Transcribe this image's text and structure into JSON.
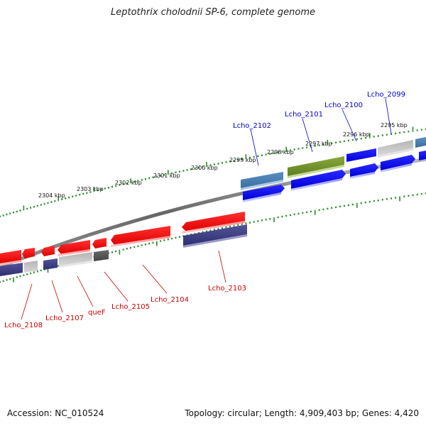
{
  "title": "Leptothrix cholodnii SP-6, complete genome",
  "accession": "Accession: NC_010524",
  "summary": "Topology: circular; Length: 4,909,403 bp; Genes: 4,420",
  "colors": {
    "forward_gene": "#0000ee",
    "reverse_gene": "#ee0000",
    "forward_label": "#0000cc",
    "reverse_label": "#cc0000",
    "tick": "#2a8a2a",
    "backbone": "#888888"
  },
  "scale_labels": [
    "2304 kbp",
    "2303 kbp",
    "2302 kbp",
    "2301 kbp",
    "2300 kbp",
    "2299 kbp",
    "2298 kbp",
    "2297 kbp",
    "2296 kbp",
    "2295 kbp"
  ],
  "forward_gene_labels": [
    "Lcho_2102",
    "Lcho_2101",
    "Lcho_2100",
    "Lcho_2099"
  ],
  "reverse_gene_labels": [
    "Lcho_2108",
    "Lcho_2107",
    "queF",
    "Lcho_2105",
    "Lcho_2104",
    "Lcho_2103"
  ]
}
